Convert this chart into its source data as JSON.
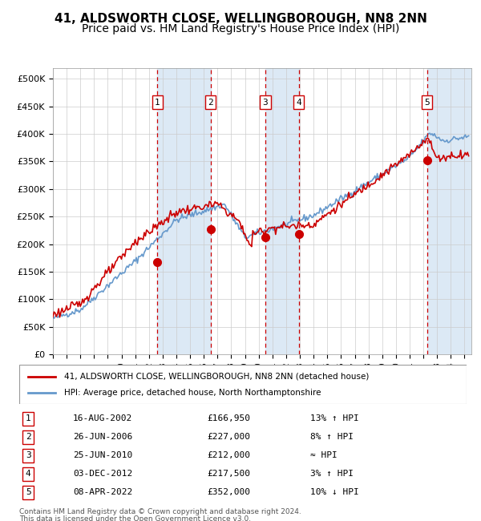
{
  "title_line1": "41, ALDSWORTH CLOSE, WELLINGBOROUGH, NN8 2NN",
  "title_line2": "Price paid vs. HM Land Registry's House Price Index (HPI)",
  "legend_line1": "41, ALDSWORTH CLOSE, WELLINGBOROUGH, NN8 2NN (detached house)",
  "legend_line2": "HPI: Average price, detached house, North Northamptonshire",
  "footer_line1": "Contains HM Land Registry data © Crown copyright and database right 2024.",
  "footer_line2": "This data is licensed under the Open Government Licence v3.0.",
  "yticks": [
    0,
    50000,
    100000,
    150000,
    200000,
    250000,
    300000,
    350000,
    400000,
    450000,
    500000
  ],
  "ytick_labels": [
    "£0",
    "£50K",
    "£100K",
    "£150K",
    "£200K",
    "£250K",
    "£300K",
    "£350K",
    "£400K",
    "£450K",
    "£500K"
  ],
  "xlim_start": 1995.0,
  "xlim_end": 2025.5,
  "ylim_min": 0,
  "ylim_max": 520000,
  "transactions": [
    {
      "num": 1,
      "date": "16-AUG-2002",
      "price": 166950,
      "year": 2002.622,
      "hpi_relation": "13% ↑ HPI"
    },
    {
      "num": 2,
      "date": "26-JUN-2006",
      "price": 227000,
      "year": 2006.486,
      "hpi_relation": "8% ↑ HPI"
    },
    {
      "num": 3,
      "date": "25-JUN-2010",
      "price": 212000,
      "year": 2010.481,
      "hpi_relation": "≈ HPI"
    },
    {
      "num": 4,
      "date": "03-DEC-2012",
      "price": 217500,
      "year": 2012.922,
      "hpi_relation": "3% ↑ HPI"
    },
    {
      "num": 5,
      "date": "08-APR-2022",
      "price": 352000,
      "year": 2022.272,
      "hpi_relation": "10% ↓ HPI"
    }
  ],
  "hpi_color": "#6699cc",
  "price_color": "#cc0000",
  "transaction_color": "#cc0000",
  "dashed_line_color": "#cc0000",
  "highlight_color": "#dce9f5",
  "grid_color": "#cccccc",
  "background_color": "#ffffff",
  "title_fontsize": 11,
  "subtitle_fontsize": 10
}
